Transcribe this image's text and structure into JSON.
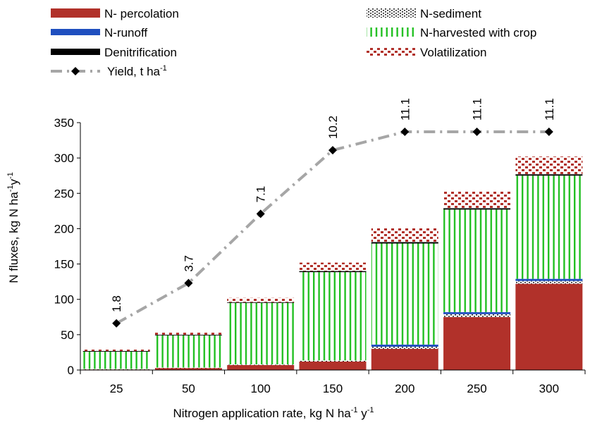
{
  "chart_data": {
    "type": "bar",
    "stacked": true,
    "categories": [
      "25",
      "50",
      "100",
      "150",
      "200",
      "250",
      "300"
    ],
    "xlabel": "Nitrogen application rate, kg N ha-1 y-1",
    "ylabel": "N fluxes, kg N ha-1y-1",
    "ylim": [
      0,
      350
    ],
    "yticks": [
      "0",
      "50",
      "100",
      "150",
      "200",
      "250",
      "300",
      "350"
    ],
    "legend_position": "top",
    "series": [
      {
        "name": "N- percolation",
        "key": "perc",
        "values": [
          1,
          3,
          7,
          12,
          30,
          75,
          122
        ]
      },
      {
        "name": "N-sediment",
        "key": "sed",
        "values": [
          0.5,
          0.5,
          1,
          1.5,
          3,
          4,
          4
        ]
      },
      {
        "name": "N-runoff",
        "key": "run",
        "values": [
          0,
          0,
          0,
          0,
          3,
          3,
          3
        ]
      },
      {
        "name": "N-harvested with crop",
        "key": "harv",
        "values": [
          24.5,
          45.5,
          87,
          125,
          143,
          145,
          146
        ]
      },
      {
        "name": "Denitrification",
        "key": "den",
        "values": [
          1,
          1,
          1,
          1.5,
          2,
          2,
          2
        ]
      },
      {
        "name": "Volatilization",
        "key": "vol",
        "values": [
          2,
          3,
          6,
          12,
          20,
          24,
          25
        ]
      }
    ],
    "yield_series": {
      "name": "Yield,",
      "unit": "t ha",
      "values": [
        1.8,
        3.7,
        7.1,
        10.2,
        11.1,
        11.1,
        11.1
      ],
      "labels": [
        "1.8",
        "3.7",
        "7.1",
        "10.2",
        "11.1",
        "11.1",
        "11.1"
      ],
      "plotted_y": [
        66,
        123,
        221,
        311,
        337,
        337,
        337
      ]
    },
    "colors": {
      "perc": "#b1312a",
      "run": "#1f4fbf",
      "den": "#000000",
      "harv": "#22c022",
      "sed": "#000000",
      "vol": "#b1312a",
      "yield_line": "#a6a6a6",
      "axis": "#000000"
    },
    "axis_texts": {
      "xlabel_main": "Nitrogen application rate, kg N ha",
      "xlabel_sup1": "-1",
      "xlabel_mid": " y",
      "xlabel_sup2": "-1",
      "ylabel_main": "N fluxes, kg N ha",
      "ylabel_sup1": "-1",
      "ylabel_mid": "y",
      "ylabel_sup2": "-1"
    }
  }
}
